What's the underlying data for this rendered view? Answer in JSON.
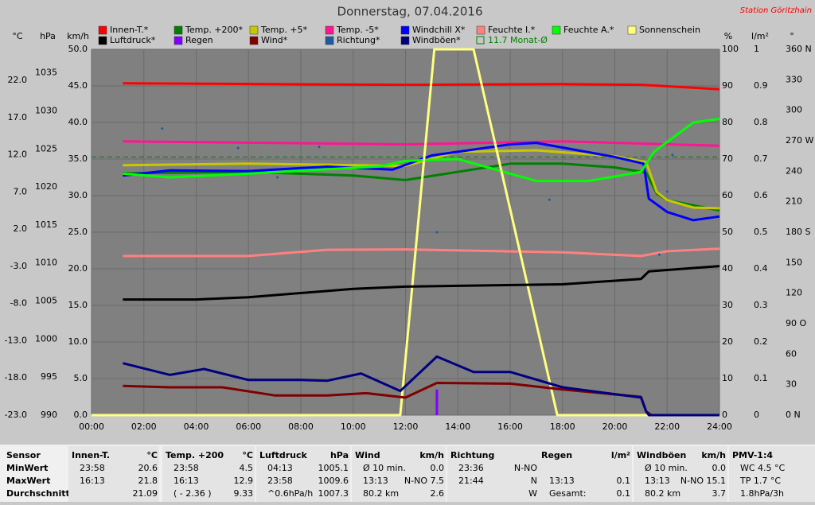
{
  "chart_data": {
    "type": "line",
    "title": "Donnerstag, 07.04.2016",
    "station": "Station Göritzhain",
    "xlim": [
      0,
      24
    ],
    "xticks": [
      {
        "value": 0,
        "label": "00:00"
      },
      {
        "value": 2,
        "label": "02:00"
      },
      {
        "value": 4,
        "label": "04:00"
      },
      {
        "value": 6,
        "label": "06:00"
      },
      {
        "value": 8,
        "label": "08:00"
      },
      {
        "value": 10,
        "label": "10:00"
      },
      {
        "value": 12,
        "label": "12:00"
      },
      {
        "value": 14,
        "label": "14:00"
      },
      {
        "value": 16,
        "label": "16:00"
      },
      {
        "value": 18,
        "label": "18:00"
      },
      {
        "value": 20,
        "label": "20:00"
      },
      {
        "value": 22,
        "label": "22:00"
      },
      {
        "value": 24,
        "label": "24:00"
      }
    ],
    "grid": true,
    "axes": [
      {
        "label": "°C",
        "lim": [
          -23,
          26.17
        ],
        "ticks": [
          {
            "value": 22,
            "label": "22.0"
          },
          {
            "value": 17,
            "label": "17.0"
          },
          {
            "value": 12,
            "label": "12.0"
          },
          {
            "value": 7,
            "label": "7.0"
          },
          {
            "value": 2,
            "label": "2.0"
          },
          {
            "value": -3,
            "label": "-3.0"
          },
          {
            "value": -8,
            "label": "-8.0"
          },
          {
            "value": -13,
            "label": "-13.0"
          },
          {
            "value": -18,
            "label": "-18.0"
          },
          {
            "value": -23,
            "label": "-23.0"
          }
        ]
      },
      {
        "label": "hPa",
        "lim": [
          990,
          1038.1
        ],
        "ticks": [
          1035,
          1030,
          1025,
          1020,
          1015,
          1010,
          1005,
          1000,
          995,
          990
        ]
      },
      {
        "label": "km/h",
        "lim": [
          0,
          50
        ],
        "ticks": [
          {
            "value": 50,
            "label": "50.0"
          },
          {
            "value": 45,
            "label": "45.0"
          },
          {
            "value": 40,
            "label": "40.0"
          },
          {
            "value": 35,
            "label": "35.0"
          },
          {
            "value": 30,
            "label": "30.0"
          },
          {
            "value": 25,
            "label": "25.0"
          },
          {
            "value": 20,
            "label": "20.0"
          },
          {
            "value": 15,
            "label": "15.0"
          },
          {
            "value": 10,
            "label": "10.0"
          },
          {
            "value": 5,
            "label": "5.0"
          },
          {
            "value": 0,
            "label": "0.0"
          }
        ]
      },
      {
        "label": "%",
        "lim": [
          0,
          100
        ],
        "ticks": [
          100,
          90,
          80,
          70,
          60,
          50,
          40,
          30,
          20,
          10,
          0
        ]
      },
      {
        "label": "l/m²",
        "lim": [
          0,
          1
        ],
        "ticks": [
          1,
          0.9,
          0.8,
          0.7,
          0.6,
          0.5,
          0.4,
          0.3,
          0.2,
          0.1,
          0
        ]
      },
      {
        "label": "°",
        "lim": [
          0,
          360
        ],
        "ticks": [
          {
            "value": 360,
            "label": "360 N"
          },
          330,
          300,
          {
            "value": 270,
            "label": "270 W"
          },
          240,
          210,
          {
            "value": 180,
            "label": "180 S"
          },
          150,
          120,
          {
            "value": 90,
            "label": "90 O"
          },
          60,
          30,
          {
            "value": 0,
            "label": "0 N"
          }
        ]
      }
    ],
    "series": [
      {
        "name": "Innen-T.*",
        "color": "#ff0000",
        "axis": 0,
        "x": [
          1.2,
          12,
          18,
          21,
          24
        ],
        "values": [
          21.6,
          21.4,
          21.5,
          21.4,
          20.8
        ]
      },
      {
        "name": "Temp. +200*",
        "color": "#008000",
        "axis": 0,
        "x": [
          1.2,
          6,
          10,
          12,
          16,
          18,
          20,
          21.2,
          21.6,
          22,
          24
        ],
        "values": [
          9.5,
          9.7,
          9.2,
          8.6,
          10.8,
          10.8,
          10.3,
          9.6,
          6.8,
          5.9,
          4.5
        ]
      },
      {
        "name": "Temp. +5*",
        "color": "#c8c800",
        "axis": 0,
        "x": [
          1.2,
          6,
          12,
          14,
          17,
          20,
          21.2,
          21.6,
          22,
          23,
          24
        ],
        "values": [
          10.6,
          10.8,
          10.5,
          12.4,
          12.6,
          11.8,
          11.0,
          7.0,
          5.9,
          4.9,
          4.8
        ]
      },
      {
        "name": "Temp. -5*",
        "color": "#ff1493",
        "axis": 0,
        "x": [
          1.2,
          12,
          18,
          24
        ],
        "values": [
          13.8,
          13.4,
          13.8,
          13.2
        ]
      },
      {
        "name": "Windchill X*",
        "color": "#0000ff",
        "axis": 0,
        "x": [
          1.2,
          3,
          6,
          9,
          11.5,
          13,
          16,
          17,
          20,
          21.1,
          21.3,
          22,
          23,
          24
        ],
        "values": [
          9.2,
          9.9,
          9.8,
          10.4,
          10.0,
          11.9,
          13.4,
          13.6,
          11.7,
          10.8,
          6.1,
          4.3,
          3.2,
          3.7
        ]
      },
      {
        "name": "Feuchte I.*",
        "color": "#ff8080",
        "axis": 3,
        "x": [
          1.2,
          6,
          9,
          12,
          18,
          21,
          22,
          24
        ],
        "values": [
          43.5,
          43.5,
          45.2,
          45.3,
          44.5,
          43.5,
          44.8,
          45.5
        ]
      },
      {
        "name": "Feuchte A.*",
        "color": "#00ff00",
        "axis": 3,
        "x": [
          1.2,
          3,
          6,
          11,
          12,
          14,
          17,
          19,
          21,
          21.5,
          23,
          24
        ],
        "values": [
          66,
          65,
          66,
          68,
          69.5,
          70,
          64,
          64,
          66.5,
          72,
          80,
          81
        ]
      },
      {
        "name": "Sonnenschein",
        "color": "#ffff80",
        "axis": 3,
        "x": [
          0,
          11.8,
          13.1,
          14.6,
          17.8,
          24
        ],
        "values": [
          0,
          0,
          100,
          100,
          0,
          0
        ]
      },
      {
        "name": "Luftdruck*",
        "color": "#000000",
        "axis": 1,
        "x": [
          1.2,
          4,
          6,
          10,
          12,
          18,
          21,
          21.3,
          24
        ],
        "values": [
          1005.2,
          1005.2,
          1005.5,
          1006.6,
          1006.9,
          1007.2,
          1007.9,
          1008.9,
          1009.6
        ]
      },
      {
        "name": "Regen",
        "color": "#8000ff",
        "axis": 4,
        "style": "bar",
        "x": [
          13.2
        ],
        "values": [
          0.07
        ]
      },
      {
        "name": "Wind*",
        "color": "#800000",
        "axis": 2,
        "x": [
          1.2,
          3,
          5,
          7,
          9,
          10.5,
          12,
          13.2,
          16,
          18,
          21,
          21.2,
          21.4,
          24
        ],
        "values": [
          4.0,
          3.8,
          3.8,
          2.7,
          2.7,
          3.0,
          2.4,
          4.4,
          4.3,
          3.5,
          2.5,
          0.5,
          0,
          0
        ]
      },
      {
        "name": "Richtung*",
        "color": "#1e5aa0",
        "axis": 5,
        "style": "dots",
        "x": [
          2.7,
          5.6,
          7.1,
          8.7,
          13.2,
          17.5,
          21.7,
          22,
          22.2
        ],
        "values": [
          282,
          263,
          234,
          264,
          180,
          212,
          158,
          220,
          256
        ]
      },
      {
        "name": "Windböen*",
        "color": "#000080",
        "axis": 2,
        "x": [
          1.2,
          3,
          4.3,
          6,
          8,
          9,
          10.3,
          11.8,
          13.2,
          14.6,
          16,
          18,
          21,
          21.2,
          21.3,
          24
        ],
        "values": [
          7.1,
          5.5,
          6.3,
          4.8,
          4.8,
          4.7,
          5.7,
          3.3,
          8.0,
          5.9,
          5.9,
          3.8,
          2.4,
          0.5,
          0,
          0
        ]
      }
    ],
    "monthly_avg": {
      "value": 11.7,
      "label": "11.7 Monat-Ø",
      "color": "#008000",
      "axis": 0
    },
    "stats": {
      "row_labels": [
        "Sensor",
        "MinWert",
        "MaxWert",
        "Durchschnitt"
      ],
      "blocks": [
        {
          "header": [
            "Innen-T.",
            "°C"
          ],
          "rows": [
            [
              "23:58",
              "20.6"
            ],
            [
              "16:13",
              "21.8"
            ],
            [
              "21.09"
            ]
          ]
        },
        {
          "header": [
            "Temp. +200",
            "°C"
          ],
          "rows": [
            [
              "23:58",
              "4.5"
            ],
            [
              "16:13",
              "12.9"
            ],
            [
              "( - 2.36 )",
              "9.33"
            ]
          ]
        },
        {
          "header": [
            "Luftdruck",
            "hPa"
          ],
          "rows": [
            [
              "04:13",
              "1005.1"
            ],
            [
              "23:58",
              "1009.6"
            ],
            [
              "^0.6hPa/h",
              "1007.3"
            ]
          ]
        },
        {
          "header": [
            "Wind",
            "km/h"
          ],
          "rows": [
            [
              "Ø 10 min.",
              "0.0"
            ],
            [
              "13:13",
              "N-NO 7.5"
            ],
            [
              "80.2 km",
              "2.6"
            ]
          ]
        },
        {
          "header": [
            "Richtung"
          ],
          "rows": [
            [
              "23:36",
              "N-NO"
            ],
            [
              "21:44",
              "N"
            ],
            [
              "W"
            ]
          ]
        },
        {
          "header": [
            "Regen",
            "l/m²"
          ],
          "rows": [
            [],
            [
              "13:13",
              "0.1"
            ],
            [
              "Gesamt:",
              "0.1"
            ]
          ]
        },
        {
          "header": [
            "Windböen",
            "km/h"
          ],
          "rows": [
            [
              "Ø 10 min.",
              "0.0"
            ],
            [
              "13:13",
              "N-NO 15.1"
            ],
            [
              "80.2 km",
              "3.7"
            ]
          ]
        },
        {
          "header": [
            "PMV-1:4"
          ],
          "rows": [
            [
              "WC 4.5 °C"
            ],
            [
              "TP 1.7 °C"
            ],
            [
              "1.8hPa/3h"
            ]
          ]
        }
      ]
    }
  }
}
